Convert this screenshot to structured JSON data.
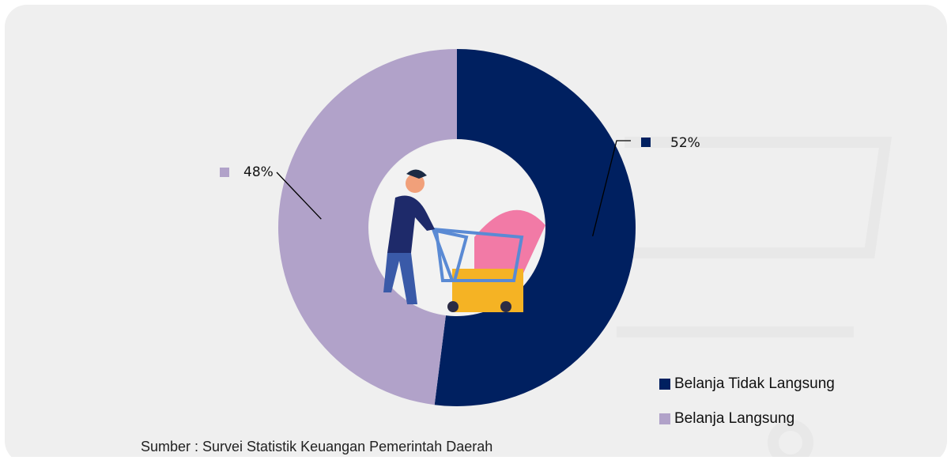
{
  "chart_data": {
    "type": "donut",
    "categories": [
      "Belanja Tidak Langsung",
      "Belanja Langsung"
    ],
    "values": [
      52,
      48
    ],
    "value_labels": [
      "52%",
      "48%"
    ],
    "colors": [
      "#002060",
      "#b1a2c9"
    ],
    "source": "Sumber : Survei Statistik Keuangan Pemerintah Daerah"
  }
}
